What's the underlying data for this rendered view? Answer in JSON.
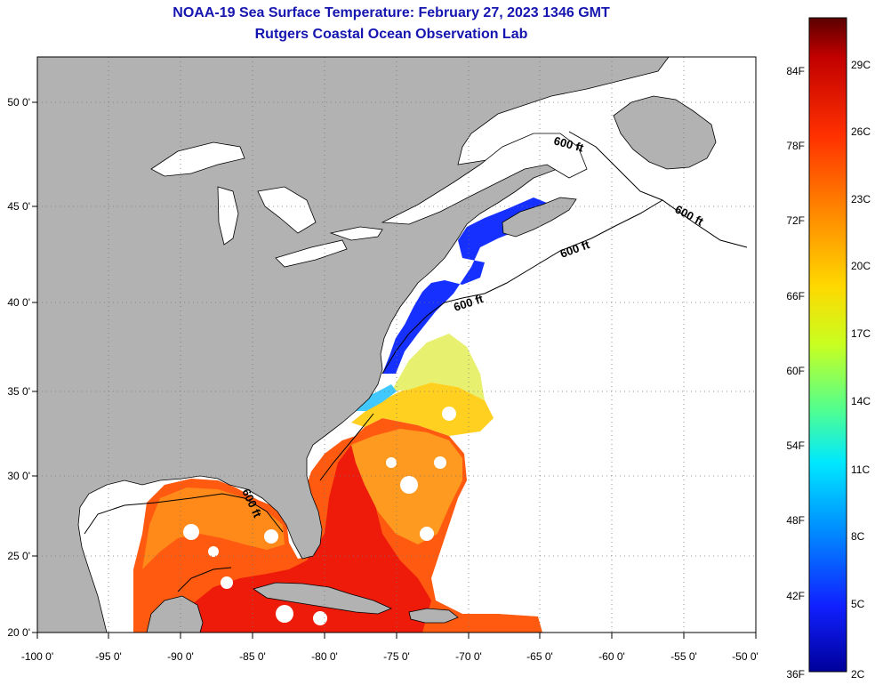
{
  "title": "NOAA-19 Sea Surface Temperature:  February 27, 2023 1346 GMT",
  "subtitle": "Rutgers Coastal Ocean Observation Lab",
  "map": {
    "lat_labels": [
      "50 0'",
      "45 0'",
      "40 0'",
      "35 0'",
      "30 0'",
      "25 0'",
      "20 0'"
    ],
    "lon_labels": [
      "-100 0'",
      "-95 0'",
      "-90 0'",
      "-85 0'",
      "-80 0'",
      "-75 0'",
      "-70 0'",
      "-65 0'",
      "-60 0'",
      "-55 0'",
      "-50 0'"
    ],
    "isobath_labels": [
      "600 ft",
      "600 ft",
      "600 ft",
      "600 ft",
      "600 ft"
    ],
    "colors": {
      "land": "#b2b2b2",
      "ocean_nodata": "#ffffff",
      "title": "#1515b0"
    }
  },
  "colorbar": {
    "fahrenheit_labels": [
      "84F",
      "78F",
      "72F",
      "66F",
      "60F",
      "54F",
      "48F",
      "42F",
      "36F"
    ],
    "celsius_labels": [
      "29C",
      "26C",
      "23C",
      "20C",
      "17C",
      "14C",
      "11C",
      "8C",
      "5C",
      "2C"
    ],
    "gradient": [
      "#5a0000",
      "#c20000",
      "#ff3000",
      "#ff8a00",
      "#ffd800",
      "#c8ff20",
      "#50ff90",
      "#00e8ff",
      "#0090ff",
      "#1020ff",
      "#00009a"
    ]
  }
}
